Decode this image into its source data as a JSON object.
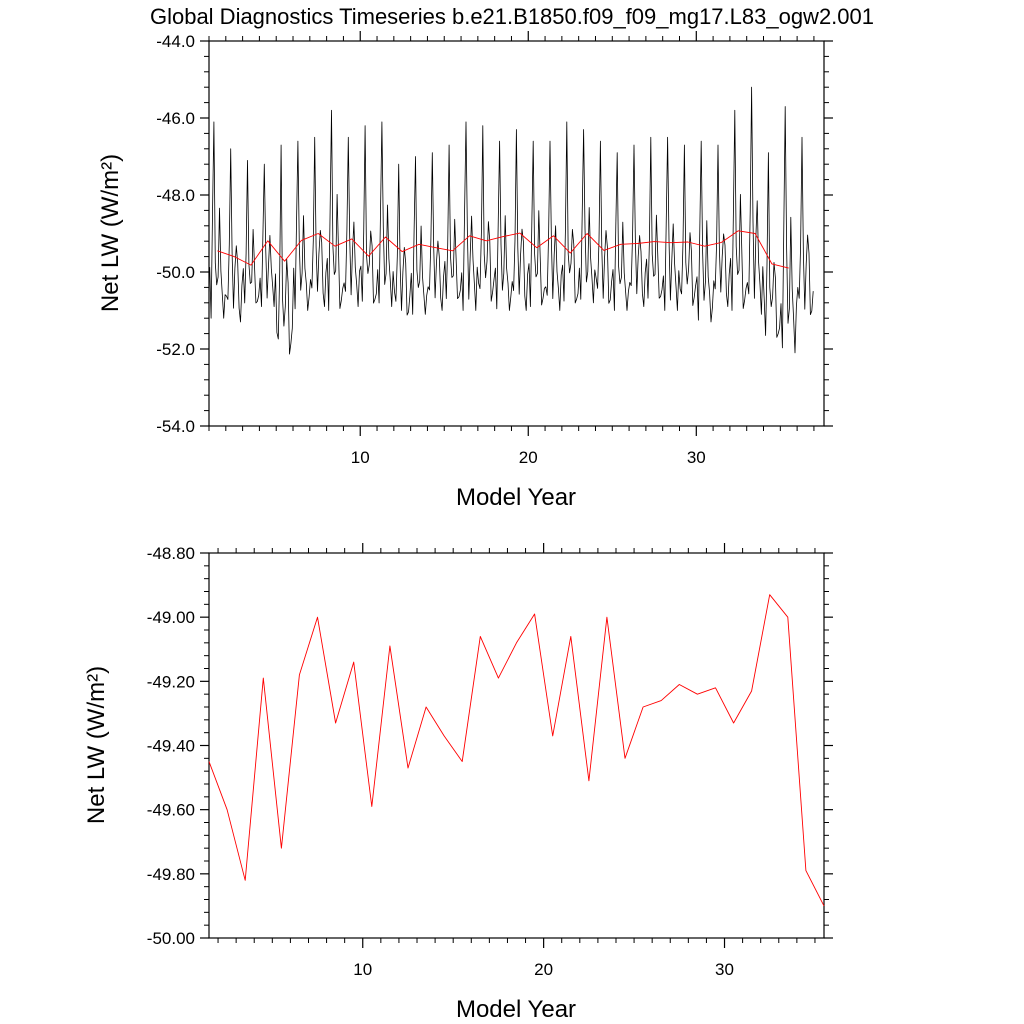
{
  "title": "Global Diagnostics Timeseries b.e21.B1850.f09_f09_mg17.L83_ogw2.001",
  "chart_data": [
    {
      "type": "line",
      "xlabel": "Model Year",
      "ylabel": "Net LW (W/m²)",
      "xlim": [
        1,
        37.6
      ],
      "ylim": [
        -54.0,
        -44.0
      ],
      "xticks": [
        10,
        20,
        30
      ],
      "yticks": [
        "-54.0",
        "-52.0",
        "-50.0",
        "-48.0",
        "-46.0",
        "-44.0"
      ],
      "series": [
        {
          "kind": "monthly",
          "color": "#000000",
          "years": 36,
          "peaks": [
            -46.1,
            -46.8,
            -47.1,
            -47.2,
            -46.7,
            -46.6,
            -46.5,
            -45.8,
            -46.5,
            -46.2,
            -46.1,
            -47.2,
            -47.0,
            -46.9,
            -46.7,
            -46.1,
            -46.2,
            -46.6,
            -46.3,
            -46.6,
            -46.6,
            -46.1,
            -46.3,
            -46.6,
            -46.9,
            -46.7,
            -46.5,
            -46.5,
            -46.7,
            -46.6,
            -46.7,
            -45.8,
            -45.2,
            -46.9,
            -45.7,
            -46.5
          ],
          "troughs": [
            -51.2,
            -51.3,
            -51.0,
            -50.9,
            -52.3,
            -51.0,
            -50.9,
            -51.0,
            -50.9,
            -51.0,
            -50.9,
            -51.2,
            -51.1,
            -51.0,
            -50.9,
            -51.0,
            -50.9,
            -51.0,
            -51.0,
            -50.9,
            -51.0,
            -51.0,
            -50.8,
            -50.9,
            -51.0,
            -50.9,
            -50.9,
            -51.0,
            -51.0,
            -51.3,
            -50.9,
            -51.0,
            -51.1,
            -51.9,
            -52.1,
            -51.2
          ]
        },
        {
          "kind": "annual",
          "color": "#ff0000",
          "x": [
            1.5,
            2.5,
            3.5,
            4.5,
            5.5,
            6.5,
            7.5,
            8.5,
            9.5,
            10.5,
            11.5,
            12.5,
            13.5,
            14.5,
            15.5,
            16.5,
            17.5,
            18.5,
            19.5,
            20.5,
            21.5,
            22.5,
            23.5,
            24.5,
            25.5,
            26.5,
            27.5,
            28.5,
            29.5,
            30.5,
            31.5,
            32.5,
            33.5,
            34.5,
            35.5
          ],
          "values": [
            -49.45,
            -49.6,
            -49.82,
            -49.19,
            -49.72,
            -49.18,
            -49.0,
            -49.33,
            -49.14,
            -49.59,
            -49.09,
            -49.47,
            -49.28,
            -49.37,
            -49.45,
            -49.06,
            -49.19,
            -49.08,
            -48.99,
            -49.37,
            -49.06,
            -49.51,
            -49.0,
            -49.44,
            -49.28,
            -49.26,
            -49.21,
            -49.24,
            -49.22,
            -49.33,
            -49.23,
            -48.93,
            -49.0,
            -49.79,
            -49.9
          ]
        }
      ]
    },
    {
      "type": "line",
      "xlabel": "Model Year",
      "ylabel": "Net LW (W/m²)",
      "xlim": [
        1.5,
        35.5
      ],
      "ylim": [
        -50.0,
        -48.8
      ],
      "xticks": [
        10,
        20,
        30
      ],
      "yticks": [
        "-50.00",
        "-49.80",
        "-49.60",
        "-49.40",
        "-49.20",
        "-49.00",
        "-48.80"
      ],
      "series": [
        {
          "kind": "annual",
          "color": "#ff0000",
          "x": [
            1.5,
            2.5,
            3.5,
            4.5,
            5.5,
            6.5,
            7.5,
            8.5,
            9.5,
            10.5,
            11.5,
            12.5,
            13.5,
            14.5,
            15.5,
            16.5,
            17.5,
            18.5,
            19.5,
            20.5,
            21.5,
            22.5,
            23.5,
            24.5,
            25.5,
            26.5,
            27.5,
            28.5,
            29.5,
            30.5,
            31.5,
            32.5,
            33.5,
            34.5,
            35.5
          ],
          "values": [
            -49.45,
            -49.6,
            -49.82,
            -49.19,
            -49.72,
            -49.18,
            -49.0,
            -49.33,
            -49.14,
            -49.59,
            -49.09,
            -49.47,
            -49.28,
            -49.37,
            -49.45,
            -49.06,
            -49.19,
            -49.08,
            -48.99,
            -49.37,
            -49.06,
            -49.51,
            -49.0,
            -49.44,
            -49.28,
            -49.26,
            -49.21,
            -49.24,
            -49.22,
            -49.33,
            -49.23,
            -48.93,
            -49.0,
            -49.79,
            -49.9
          ]
        }
      ]
    }
  ]
}
